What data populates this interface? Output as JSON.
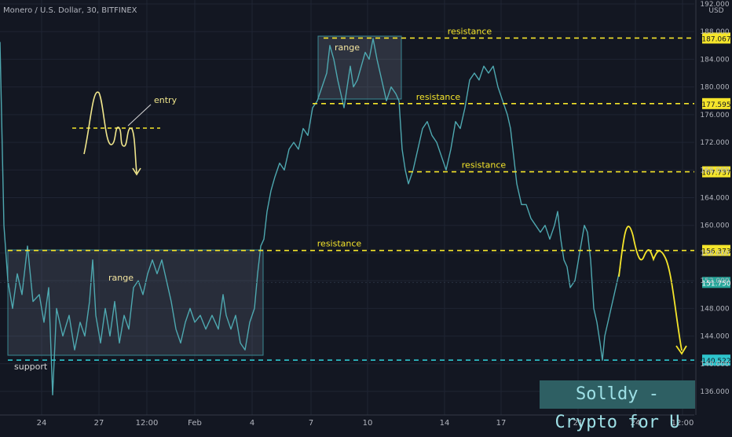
{
  "header": {
    "title": "Monero / U.S. Dollar, 30, BITFINEX"
  },
  "watermark": "Solldy - Crypto for U",
  "chart_data": {
    "type": "line",
    "title": "Monero / U.S. Dollar, 30, BITFINEX",
    "y_axis": {
      "unit": "USD",
      "ylim": [
        133.5,
        192.5
      ],
      "ticks": [
        136.0,
        140.0,
        144.0,
        148.0,
        152.0,
        156.0,
        160.0,
        164.0,
        168.0,
        172.0,
        176.0,
        180.0,
        184.0,
        188.0,
        192.0
      ],
      "tick_labels": [
        "136.000",
        "140.000",
        "144.000",
        "148.000",
        "152.000",
        "156.000",
        "160.000",
        "164.000",
        "168.000",
        "172.000",
        "176.000",
        "180.000",
        "184.000",
        "188.000",
        "192.000"
      ]
    },
    "x_axis": {
      "tick_labels": [
        "24",
        "27",
        "12:00",
        "Feb",
        "4",
        "7",
        "10",
        "14",
        "17",
        "21",
        "24",
        "12:00"
      ]
    },
    "grid": true,
    "series": [
      {
        "color": "#4ea8b0",
        "points": [
          [
            0,
            186.5
          ],
          [
            5,
            160
          ],
          [
            10,
            152
          ],
          [
            16,
            148
          ],
          [
            22,
            153
          ],
          [
            28,
            150
          ],
          [
            35,
            157
          ],
          [
            42,
            149
          ],
          [
            50,
            150
          ],
          [
            56,
            146
          ],
          [
            62,
            151
          ],
          [
            67,
            135.5
          ],
          [
            72,
            148
          ],
          [
            80,
            144
          ],
          [
            88,
            147
          ],
          [
            95,
            142
          ],
          [
            102,
            146
          ],
          [
            108,
            144
          ],
          [
            114,
            149
          ],
          [
            118,
            155
          ],
          [
            122,
            147
          ],
          [
            128,
            143
          ],
          [
            134,
            148
          ],
          [
            140,
            144
          ],
          [
            146,
            149
          ],
          [
            152,
            143
          ],
          [
            158,
            147
          ],
          [
            164,
            145
          ],
          [
            170,
            151
          ],
          [
            176,
            152
          ],
          [
            182,
            150
          ],
          [
            188,
            153
          ],
          [
            194,
            155
          ],
          [
            200,
            153
          ],
          [
            206,
            155
          ],
          [
            212,
            152
          ],
          [
            218,
            149
          ],
          [
            224,
            145
          ],
          [
            230,
            143
          ],
          [
            236,
            146
          ],
          [
            242,
            148
          ],
          [
            248,
            146
          ],
          [
            255,
            147
          ],
          [
            262,
            145
          ],
          [
            270,
            147
          ],
          [
            278,
            145
          ],
          [
            284,
            150
          ],
          [
            288,
            147
          ],
          [
            294,
            145
          ],
          [
            300,
            147
          ],
          [
            306,
            143
          ],
          [
            312,
            142
          ],
          [
            318,
            146
          ],
          [
            324,
            148
          ],
          [
            328,
            153
          ],
          [
            332,
            157
          ],
          [
            336,
            158
          ],
          [
            340,
            162
          ],
          [
            345,
            165
          ],
          [
            350,
            167
          ],
          [
            356,
            169
          ],
          [
            362,
            168
          ],
          [
            368,
            171
          ],
          [
            374,
            172
          ],
          [
            380,
            171
          ],
          [
            386,
            174
          ],
          [
            392,
            173
          ],
          [
            398,
            177
          ],
          [
            404,
            178
          ],
          [
            410,
            180
          ],
          [
            416,
            182
          ],
          [
            420,
            186
          ],
          [
            425,
            184
          ],
          [
            430,
            181
          ],
          [
            434,
            179
          ],
          [
            438,
            177
          ],
          [
            442,
            180
          ],
          [
            446,
            183
          ],
          [
            450,
            180
          ],
          [
            455,
            181
          ],
          [
            460,
            183
          ],
          [
            465,
            185
          ],
          [
            470,
            184
          ],
          [
            475,
            187
          ],
          [
            480,
            184
          ],
          [
            486,
            181
          ],
          [
            492,
            178
          ],
          [
            498,
            180
          ],
          [
            504,
            179
          ],
          [
            508,
            178
          ],
          [
            512,
            171
          ],
          [
            516,
            168
          ],
          [
            520,
            166
          ],
          [
            526,
            168
          ],
          [
            532,
            171
          ],
          [
            538,
            174
          ],
          [
            544,
            175
          ],
          [
            550,
            173
          ],
          [
            556,
            172
          ],
          [
            562,
            170
          ],
          [
            568,
            168
          ],
          [
            574,
            171
          ],
          [
            580,
            175
          ],
          [
            586,
            174
          ],
          [
            592,
            177
          ],
          [
            598,
            181
          ],
          [
            604,
            182
          ],
          [
            610,
            181
          ],
          [
            616,
            183
          ],
          [
            622,
            182
          ],
          [
            628,
            183
          ],
          [
            634,
            180
          ],
          [
            640,
            178
          ],
          [
            646,
            176
          ],
          [
            650,
            174
          ],
          [
            654,
            170
          ],
          [
            658,
            166
          ],
          [
            664,
            163
          ],
          [
            670,
            163
          ],
          [
            676,
            161
          ],
          [
            682,
            160
          ],
          [
            688,
            159
          ],
          [
            694,
            160
          ],
          [
            700,
            158
          ],
          [
            706,
            160
          ],
          [
            710,
            162
          ],
          [
            714,
            158
          ],
          [
            718,
            155
          ],
          [
            722,
            154
          ],
          [
            726,
            151
          ],
          [
            732,
            152
          ],
          [
            738,
            156
          ],
          [
            744,
            160
          ],
          [
            748,
            159
          ],
          [
            752,
            155
          ],
          [
            756,
            148
          ],
          [
            760,
            146
          ],
          [
            764,
            143
          ],
          [
            767,
            140.5
          ],
          [
            770,
            144
          ],
          [
            774,
            146
          ],
          [
            778,
            148
          ],
          [
            782,
            150
          ],
          [
            786,
            152
          ],
          [
            790,
            154
          ]
        ]
      }
    ],
    "levels": [
      {
        "label": "resistance",
        "value": 187.067,
        "value_label": "187.067",
        "color": "#f5e52b",
        "style": "dashed"
      },
      {
        "label": "resistance",
        "value": 177.595,
        "value_label": "177.595",
        "color": "#f5e52b",
        "style": "dashed"
      },
      {
        "label": "resistance",
        "value": 167.737,
        "value_label": "167.737",
        "color": "#f5e52b",
        "style": "dashed"
      },
      {
        "label": "resistance",
        "value": 156.373,
        "value_label": "156.373",
        "color": "#f5e52b",
        "style": "dashed"
      },
      {
        "label": "support",
        "value": 140.522,
        "value_label": "140.522",
        "color": "#2ec4cc",
        "style": "dashed"
      }
    ],
    "last_price": {
      "value": 151.75,
      "label": "151.750",
      "color": "#26a69a"
    },
    "annotations": [
      {
        "type": "box",
        "label": "range"
      },
      {
        "type": "box",
        "label": "range"
      },
      {
        "type": "sketch",
        "label": "entry",
        "color": "#f0e68c"
      },
      {
        "type": "projection",
        "color": "#f5e52b"
      }
    ]
  }
}
